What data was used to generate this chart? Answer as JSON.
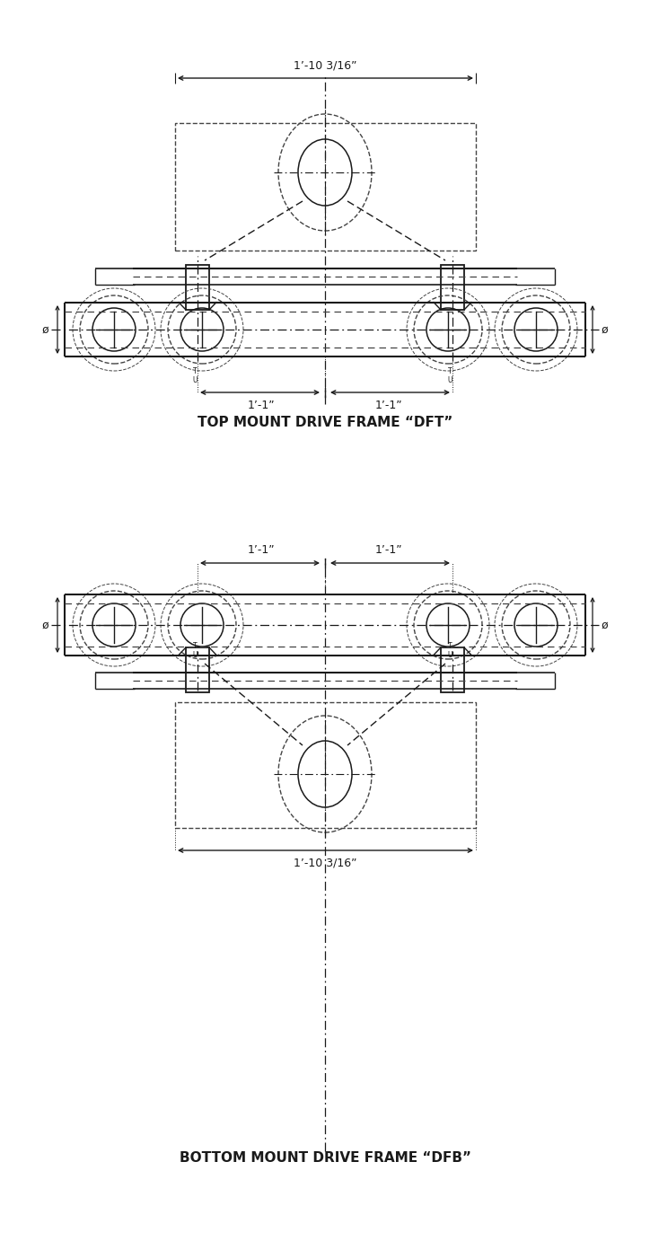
{
  "bg_color": "#ffffff",
  "line_color": "#1a1a1a",
  "dashed_color": "#444444",
  "title_top": "TOP MOUNT DRIVE FRAME “DFT”",
  "title_bottom": "BOTTOM MOUNT DRIVE FRAME “DFB”",
  "dim_wide": "1’-10 3/16”",
  "dim_spacing": "1’-1”",
  "label_phi": "ø"
}
